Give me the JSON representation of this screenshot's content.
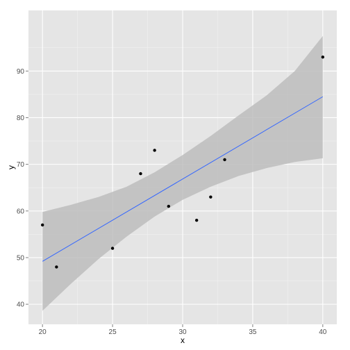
{
  "chart_data": {
    "type": "scatter",
    "title": "",
    "xlabel": "x",
    "ylabel": "y",
    "xlim": [
      19.0,
      41.0
    ],
    "ylim": [
      35.7,
      103.0
    ],
    "x_ticks": [
      20,
      25,
      30,
      35,
      40
    ],
    "x_tick_labels": [
      "20",
      "25",
      "30",
      "35",
      "40"
    ],
    "y_ticks": [
      40,
      50,
      60,
      70,
      80,
      90
    ],
    "y_tick_labels": [
      "40",
      "50",
      "60",
      "70",
      "80",
      "90"
    ],
    "grid": true,
    "points": {
      "x": [
        20,
        21,
        25,
        27,
        28,
        29,
        31,
        32,
        33,
        40
      ],
      "y": [
        57,
        48,
        52,
        68,
        73,
        61,
        58,
        63,
        71,
        93
      ]
    },
    "fit": {
      "method": "linear",
      "start": {
        "x": 20,
        "y": 49.2
      },
      "end": {
        "x": 40,
        "y": 84.5
      }
    },
    "confidence_band": {
      "x": [
        20,
        22,
        24,
        26,
        28,
        30,
        32,
        34,
        36,
        38,
        40
      ],
      "upper": [
        59.8,
        61.3,
        63.0,
        65.2,
        68.3,
        72.0,
        76.1,
        80.5,
        84.8,
        90.0,
        97.5
      ],
      "lower": [
        38.6,
        44.3,
        49.7,
        54.5,
        58.8,
        62.4,
        65.2,
        67.5,
        69.2,
        70.5,
        71.3
      ]
    },
    "colors": {
      "panel_background": "#e5e5e5",
      "grid_major": "#ffffff",
      "grid_minor": "#f2f2f2",
      "points": "#000000",
      "fit_line": "#3366ff",
      "band": "#bdbdbd"
    }
  }
}
